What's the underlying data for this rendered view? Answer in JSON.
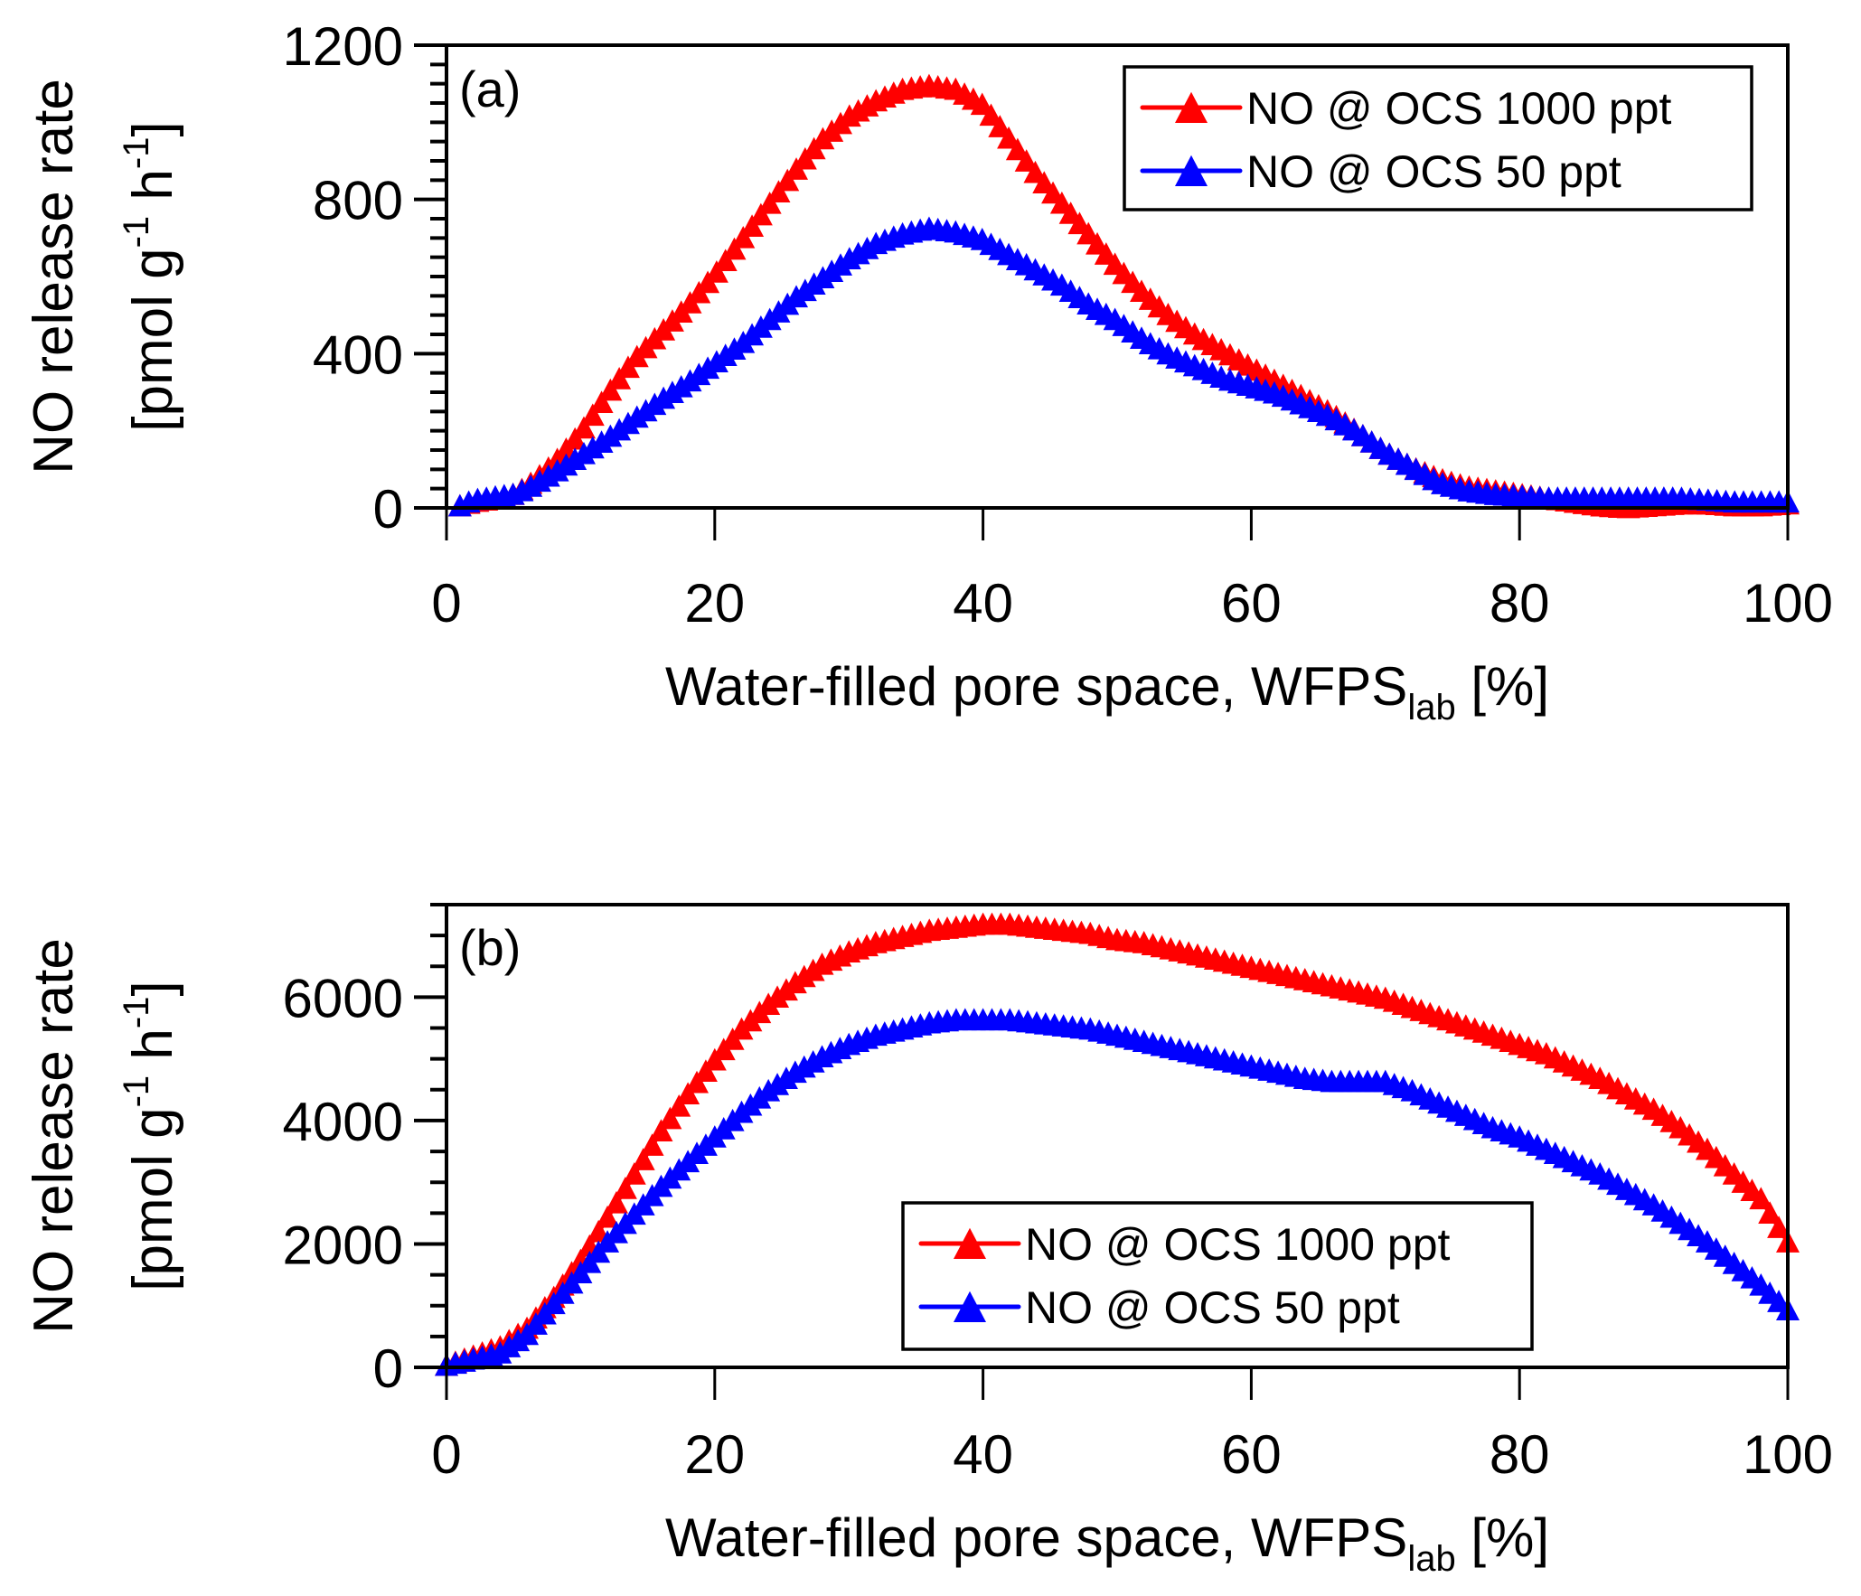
{
  "chart_data": [
    {
      "panel_label": "(a)",
      "type": "line",
      "marker": "triangle",
      "xlabel": "Water-filled pore space, WFPS",
      "xlabel_sub": "lab",
      "xlabel_suffix": " [%]",
      "ylabel_line1": "NO release rate",
      "ylabel_line2": "[pmol g",
      "ylabel_sup1": "-1",
      "ylabel_mid": " h",
      "ylabel_sup2": "-1",
      "ylabel_end": "]",
      "xlim": [
        0,
        100
      ],
      "ylim": [
        0,
        1200
      ],
      "xticks": [
        0,
        20,
        40,
        60,
        80,
        100
      ],
      "yticks": [
        0,
        400,
        800,
        1200
      ],
      "y_minor_step": 50,
      "legend_position": "top-right",
      "grid": false,
      "series": [
        {
          "name": "NO @ OCS 1000 ppt",
          "color": "#ff0000",
          "x": [
            1,
            2,
            3,
            4,
            5,
            6,
            8,
            10,
            12,
            14,
            16,
            18,
            20,
            22,
            24,
            26,
            28,
            30,
            32,
            34,
            36,
            38,
            40,
            42,
            44,
            46,
            48,
            50,
            52,
            54,
            56,
            58,
            60,
            62,
            64,
            66,
            68,
            70,
            72,
            74,
            76,
            78,
            80,
            82,
            84,
            86,
            88,
            90,
            92,
            94,
            96,
            98,
            100
          ],
          "y": [
            0,
            10,
            15,
            20,
            30,
            50,
            110,
            190,
            290,
            380,
            450,
            520,
            600,
            690,
            780,
            870,
            950,
            1010,
            1050,
            1080,
            1090,
            1080,
            1040,
            950,
            860,
            780,
            700,
            620,
            550,
            490,
            440,
            400,
            360,
            320,
            280,
            240,
            190,
            140,
            100,
            70,
            50,
            40,
            30,
            20,
            10,
            0,
            -5,
            0,
            5,
            5,
            0,
            0,
            5
          ]
        },
        {
          "name": "NO @ OCS 50 ppt",
          "color": "#0000ff",
          "x": [
            1,
            2,
            3,
            4,
            5,
            6,
            8,
            10,
            12,
            14,
            16,
            18,
            20,
            22,
            24,
            26,
            28,
            30,
            32,
            34,
            36,
            38,
            40,
            42,
            44,
            46,
            48,
            50,
            52,
            54,
            56,
            58,
            60,
            62,
            64,
            66,
            68,
            70,
            72,
            74,
            76,
            78,
            80,
            82,
            84,
            86,
            88,
            90,
            92,
            94,
            96,
            98,
            100
          ],
          "y": [
            0,
            15,
            20,
            25,
            30,
            45,
            85,
            130,
            175,
            225,
            275,
            320,
            370,
            420,
            480,
            540,
            590,
            640,
            680,
            705,
            720,
            710,
            690,
            650,
            610,
            570,
            520,
            480,
            430,
            390,
            360,
            330,
            310,
            290,
            260,
            230,
            190,
            140,
            100,
            60,
            40,
            30,
            25,
            20,
            20,
            20,
            20,
            20,
            20,
            15,
            10,
            10,
            10
          ]
        }
      ]
    },
    {
      "panel_label": "(b)",
      "type": "line",
      "marker": "triangle",
      "xlabel": "Water-filled pore space, WFPS",
      "xlabel_sub": "lab",
      "xlabel_suffix": " [%]",
      "ylabel_line1": "NO release rate",
      "ylabel_line2": "[pmol g",
      "ylabel_sup1": "-1",
      "ylabel_mid": " h",
      "ylabel_sup2": "-1",
      "ylabel_end": "]",
      "xlim": [
        0,
        100
      ],
      "ylim": [
        0,
        7500
      ],
      "xticks": [
        0,
        20,
        40,
        60,
        80,
        100
      ],
      "yticks": [
        0,
        2000,
        4000,
        6000
      ],
      "y_minor_step": 500,
      "legend_position": "bottom-center",
      "grid": false,
      "series": [
        {
          "name": "NO @ OCS 1000 ppt",
          "color": "#ff0000",
          "x": [
            0,
            2,
            4,
            6,
            8,
            10,
            12,
            14,
            16,
            18,
            20,
            22,
            24,
            26,
            28,
            30,
            32,
            34,
            36,
            38,
            40,
            42,
            44,
            46,
            48,
            50,
            52,
            54,
            56,
            58,
            60,
            62,
            64,
            66,
            68,
            70,
            72,
            74,
            76,
            78,
            80,
            82,
            84,
            86,
            88,
            90,
            92,
            94,
            96,
            98,
            100
          ],
          "y": [
            0,
            150,
            300,
            600,
            1100,
            1700,
            2400,
            3100,
            3800,
            4400,
            4950,
            5450,
            5850,
            6200,
            6500,
            6700,
            6850,
            6950,
            7050,
            7100,
            7150,
            7150,
            7100,
            7050,
            7000,
            6900,
            6850,
            6750,
            6650,
            6550,
            6450,
            6350,
            6250,
            6150,
            6050,
            5950,
            5800,
            5650,
            5500,
            5350,
            5200,
            5050,
            4850,
            4650,
            4400,
            4150,
            3850,
            3500,
            3100,
            2700,
            2000
          ]
        },
        {
          "name": "NO @ OCS 50 ppt",
          "color": "#0000ff",
          "x": [
            0,
            2,
            4,
            6,
            8,
            10,
            12,
            14,
            16,
            18,
            20,
            22,
            24,
            26,
            28,
            30,
            32,
            34,
            36,
            38,
            40,
            42,
            44,
            46,
            48,
            50,
            52,
            54,
            56,
            58,
            60,
            62,
            64,
            66,
            68,
            70,
            72,
            74,
            76,
            78,
            80,
            82,
            84,
            86,
            88,
            90,
            92,
            94,
            96,
            98,
            100
          ],
          "y": [
            0,
            100,
            200,
            500,
            1000,
            1500,
            2000,
            2450,
            2900,
            3300,
            3700,
            4100,
            4450,
            4750,
            5000,
            5200,
            5350,
            5450,
            5550,
            5600,
            5600,
            5600,
            5550,
            5500,
            5450,
            5350,
            5250,
            5150,
            5050,
            4950,
            4850,
            4750,
            4650,
            4600,
            4600,
            4600,
            4450,
            4250,
            4050,
            3850,
            3700,
            3500,
            3300,
            3100,
            2850,
            2600,
            2300,
            2000,
            1650,
            1300,
            900
          ]
        }
      ]
    }
  ]
}
